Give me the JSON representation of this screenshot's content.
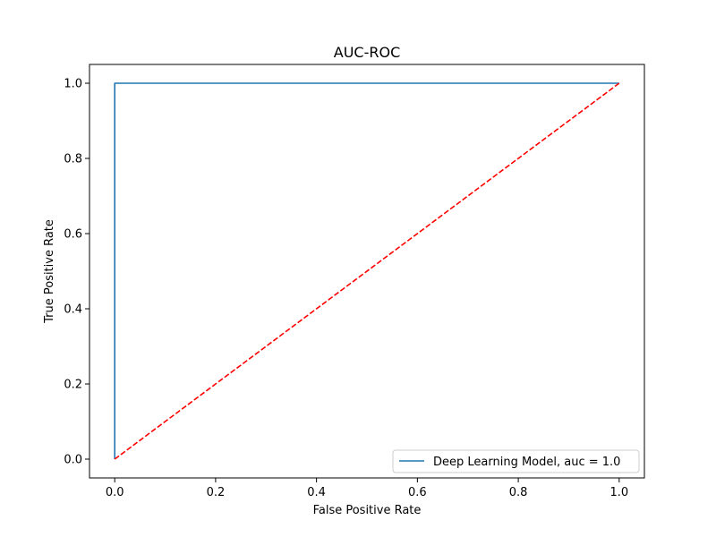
{
  "chart_data": {
    "type": "line",
    "title": "AUC-ROC",
    "xlabel": "False Positive Rate",
    "ylabel": "True Positive Rate",
    "xlim": [
      -0.05,
      1.05
    ],
    "ylim": [
      -0.05,
      1.05
    ],
    "xticks": [
      0.0,
      0.2,
      0.4,
      0.6,
      0.8,
      1.0
    ],
    "yticks": [
      0.0,
      0.2,
      0.4,
      0.6,
      0.8,
      1.0
    ],
    "xtick_labels": [
      "0.0",
      "0.2",
      "0.4",
      "0.6",
      "0.8",
      "1.0"
    ],
    "ytick_labels": [
      "0.0",
      "0.2",
      "0.4",
      "0.6",
      "0.8",
      "1.0"
    ],
    "grid": false,
    "legend_position": "bottom-right",
    "series": [
      {
        "name": "Deep Learning Model, auc = 1.0",
        "color": "#1f77b4",
        "style": "solid",
        "x": [
          0.0,
          0.0,
          1.0
        ],
        "y": [
          0.0,
          1.0,
          1.0
        ]
      },
      {
        "color": "#ff0000",
        "style": "dashed",
        "x": [
          0.0,
          1.0
        ],
        "y": [
          0.0,
          1.0
        ]
      }
    ]
  }
}
